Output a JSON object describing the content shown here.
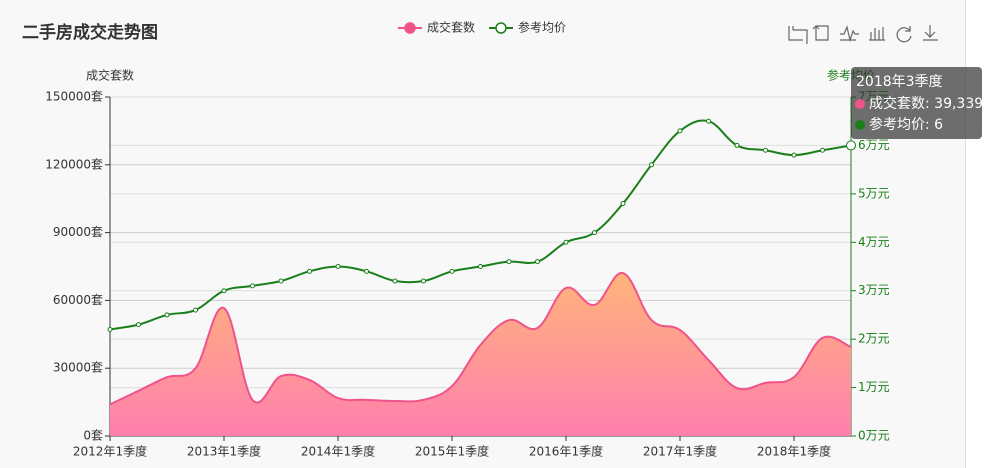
{
  "chart_data": {
    "type": "line",
    "title": "二手房成交走势图",
    "categories": [
      "2012年1季度",
      null,
      null,
      null,
      "2013年1季度",
      null,
      null,
      null,
      "2014年1季度",
      null,
      null,
      null,
      "2015年1季度",
      null,
      null,
      null,
      "2016年1季度",
      null,
      null,
      null,
      "2017年1季度",
      null,
      null,
      null,
      "2018年1季度",
      null,
      null
    ],
    "y_axis_name": "成交套数",
    "y2_axis_name": "参考均价",
    "ylim": [
      0,
      150000
    ],
    "yticks": [
      {
        "value": 0,
        "label": "0套"
      },
      {
        "value": 30000,
        "label": "30000套"
      },
      {
        "value": 60000,
        "label": "60000套"
      },
      {
        "value": 90000,
        "label": "90000套"
      },
      {
        "value": 120000,
        "label": "120000套"
      },
      {
        "value": 150000,
        "label": "150000套"
      }
    ],
    "y2lim": [
      0,
      7
    ],
    "y2ticks": [
      {
        "value": 0,
        "label": "0万元"
      },
      {
        "value": 1,
        "label": "1万元"
      },
      {
        "value": 2,
        "label": "2万元"
      },
      {
        "value": 3,
        "label": "3万元"
      },
      {
        "value": 4,
        "label": "4万元"
      },
      {
        "value": 5,
        "label": "5万元"
      },
      {
        "value": 6,
        "label": "6万元"
      },
      {
        "value": 7,
        "label": "7万元"
      }
    ],
    "grid": true,
    "legend_position": "top",
    "series": [
      {
        "name": "成交套数",
        "color": "#f0538a",
        "area": true,
        "area_colors": [
          "#ffb47a",
          "#ff7fae"
        ],
        "values": [
          14000,
          20000,
          26000,
          30000,
          56600,
          16000,
          26500,
          24800,
          16800,
          16000,
          15500,
          16000,
          22100,
          40300,
          51300,
          47800,
          65500,
          58000,
          72100,
          51300,
          46900,
          33600,
          21200,
          23500,
          26100,
          43400,
          39339
        ]
      },
      {
        "name": "参考均价",
        "color": "#1a7f1a",
        "axis": "y2",
        "values": [
          2.2,
          2.3,
          2.5,
          2.6,
          3.0,
          3.1,
          3.2,
          3.4,
          3.5,
          3.4,
          3.2,
          3.2,
          3.4,
          3.5,
          3.6,
          3.6,
          4.0,
          4.2,
          4.8,
          5.6,
          6.3,
          6.5,
          6.0,
          5.9,
          5.8,
          5.9,
          6
        ]
      }
    ],
    "tooltip": {
      "title": "2018年3季度",
      "items": [
        {
          "name": "成交套数",
          "color": "#f0538a",
          "value": 39339,
          "label": "39,339"
        },
        {
          "name": "参考均价",
          "color": "#1a7f1a",
          "value": 6
        }
      ]
    }
  }
}
